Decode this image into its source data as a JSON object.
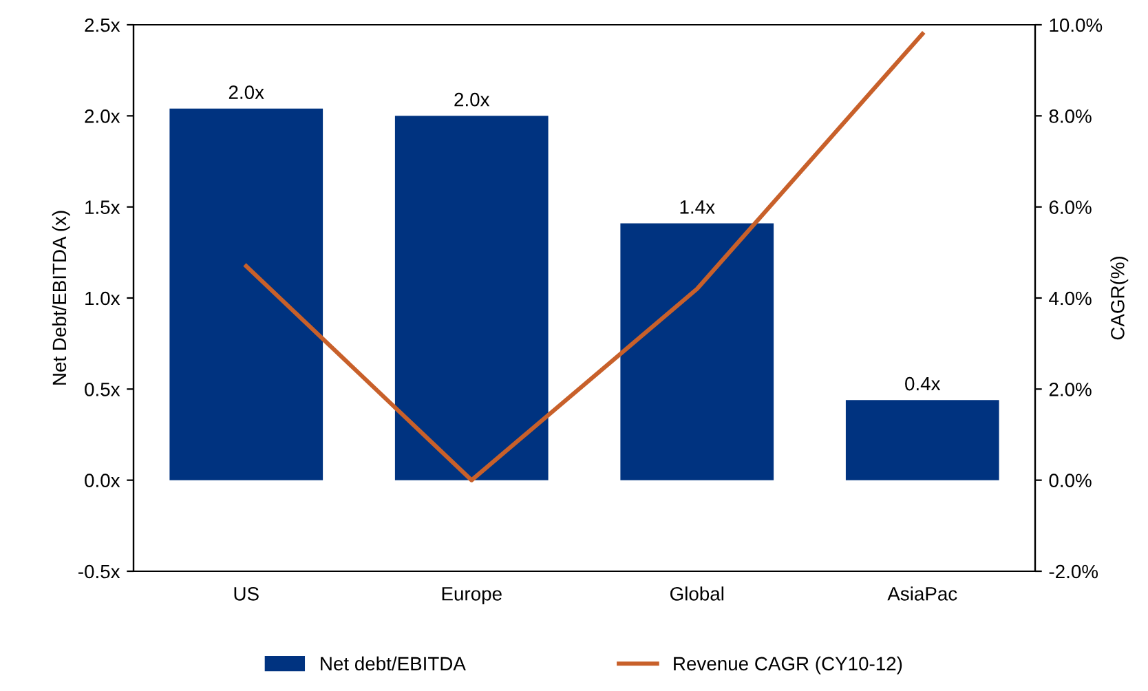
{
  "chart_data": {
    "type": "bar",
    "categories": [
      "US",
      "Europe",
      "Global",
      "AsiaPac"
    ],
    "series": [
      {
        "name": "Net debt/EBITDA",
        "color": "#003380",
        "values": [
          2.04,
          2.0,
          1.41,
          0.44
        ],
        "value_labels": [
          "2.0x",
          "2.0x",
          "1.4x",
          "0.4x"
        ]
      },
      {
        "name": "Revenue CAGR (CY10-12)",
        "type": "line",
        "axis": "y2",
        "color": "#c8602a",
        "values": [
          4.7,
          0.0,
          4.2,
          9.8
        ]
      }
    ],
    "ylabel": "Net Debt/EBITDA (x)",
    "y2label": "CAGR(%)",
    "ylim": [
      -0.5,
      2.5
    ],
    "yticks": [
      {
        "value": -0.5,
        "label": "-0.5x"
      },
      {
        "value": 0,
        "label": "0.0x"
      },
      {
        "value": 0.5,
        "label": "0.5x"
      },
      {
        "value": 1,
        "label": "1.0x"
      },
      {
        "value": 1.5,
        "label": "1.5x"
      },
      {
        "value": 2,
        "label": "2.0x"
      },
      {
        "value": 2.5,
        "label": "2.5x"
      }
    ],
    "y2lim": [
      -2,
      10
    ],
    "y2ticks": [
      {
        "value": -2,
        "label": "-2.0%"
      },
      {
        "value": 0,
        "label": "0.0%"
      },
      {
        "value": 2,
        "label": "2.0%"
      },
      {
        "value": 4,
        "label": "4.0%"
      },
      {
        "value": 6,
        "label": "6.0%"
      },
      {
        "value": 8,
        "label": "8.0%"
      },
      {
        "value": 10,
        "label": "10.0%"
      }
    ],
    "legend": "bottom",
    "grid": false,
    "marker": "none",
    "line_style": "solid"
  }
}
